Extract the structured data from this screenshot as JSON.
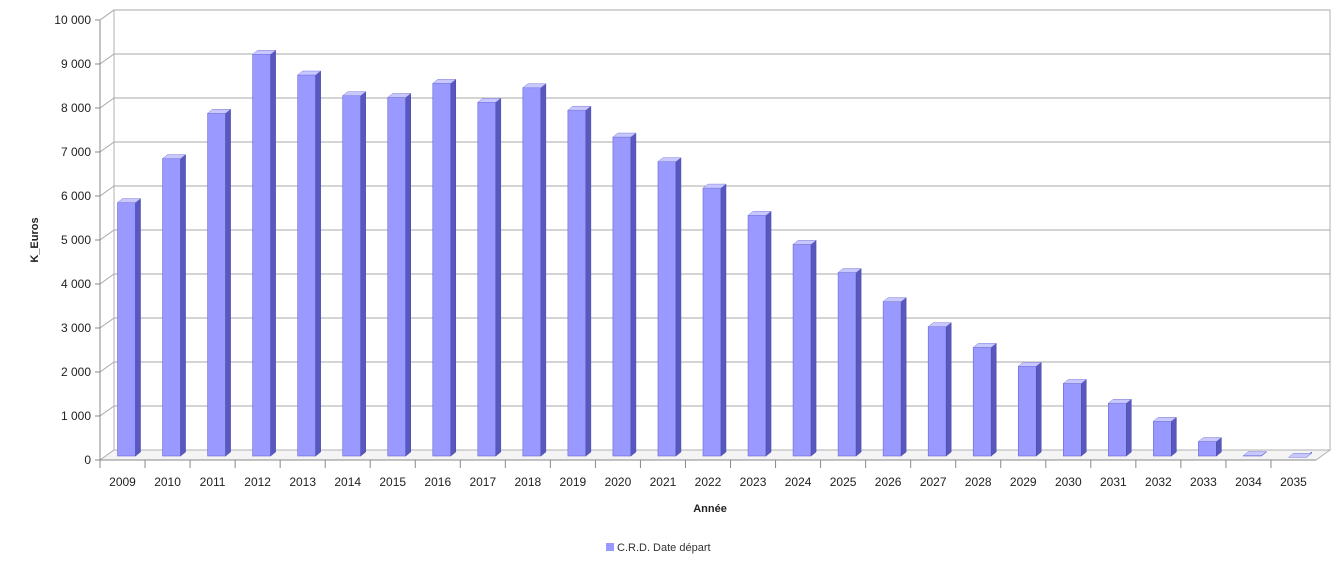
{
  "chart_data": {
    "type": "bar",
    "title": "",
    "xlabel": "Année",
    "ylabel": "K_Euros",
    "ylim": [
      0,
      10000
    ],
    "yticks": [
      0,
      1000,
      2000,
      3000,
      4000,
      5000,
      6000,
      7000,
      8000,
      9000,
      10000
    ],
    "ytick_labels": [
      "0",
      "1 000",
      "2 000",
      "3 000",
      "4 000",
      "5 000",
      "6 000",
      "7 000",
      "8 000",
      "9 000",
      "10 000"
    ],
    "grid": true,
    "legend_position": "bottom-center",
    "categories": [
      "2009",
      "2010",
      "2011",
      "2012",
      "2013",
      "2014",
      "2015",
      "2016",
      "2017",
      "2018",
      "2019",
      "2020",
      "2021",
      "2022",
      "2023",
      "2024",
      "2025",
      "2026",
      "2027",
      "2028",
      "2029",
      "2030",
      "2031",
      "2032",
      "2033",
      "2034",
      "2035"
    ],
    "series": [
      {
        "name": "C.R.D. Date départ",
        "color": "#9999ff",
        "values": [
          5850,
          6850,
          7880,
          9220,
          8750,
          8280,
          8240,
          8560,
          8130,
          8460,
          7950,
          7340,
          6780,
          6180,
          5560,
          4900,
          4260,
          3600,
          3030,
          2560,
          2130,
          1740,
          1290,
          880,
          420,
          100,
          60
        ]
      }
    ]
  }
}
